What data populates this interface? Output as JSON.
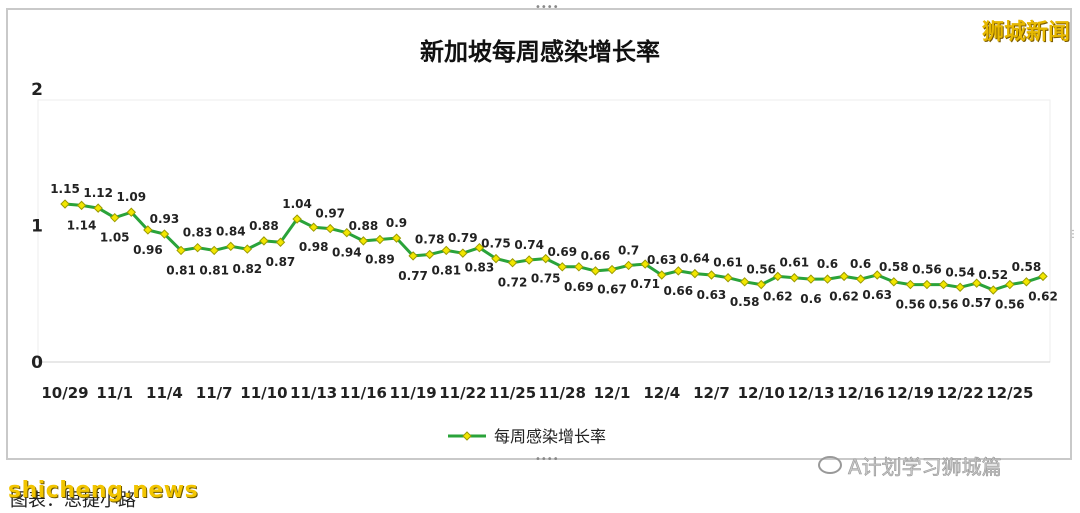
{
  "title": "新加坡每周感染增长率",
  "brand": "狮城新闻",
  "watermark_site": "shicheng.news",
  "wechat_account": "A计划学习狮城篇",
  "footer_note": "图表：思捷小路",
  "colors": {
    "line": "#2aa33a",
    "marker": "#f2e600",
    "marker_edge": "#9a9a00"
  },
  "chart_data": {
    "type": "line",
    "title": "新加坡每周感染增长率",
    "ylim": [
      0,
      2
    ],
    "yticks": [
      0,
      1,
      2
    ],
    "grid": false,
    "legend_position": "bottom",
    "x_tick_labels": [
      "10/29",
      "11/1",
      "11/4",
      "11/7",
      "11/10",
      "11/13",
      "11/16",
      "11/19",
      "11/22",
      "11/25",
      "11/28",
      "12/1",
      "12/4",
      "12/7",
      "12/10",
      "12/13",
      "12/16",
      "12/19",
      "12/22",
      "12/25"
    ],
    "x_tick_every": 3,
    "series": [
      {
        "name": "每周感染增长率",
        "values": [
          1.15,
          1.14,
          1.12,
          1.05,
          1.09,
          0.96,
          0.93,
          0.81,
          0.83,
          0.81,
          0.84,
          0.82,
          0.88,
          0.87,
          1.04,
          0.98,
          0.97,
          0.94,
          0.88,
          0.89,
          0.9,
          0.77,
          0.78,
          0.81,
          0.79,
          0.83,
          0.75,
          0.72,
          0.74,
          0.75,
          0.69,
          0.69,
          0.66,
          0.67,
          0.7,
          0.71,
          0.63,
          0.66,
          0.64,
          0.63,
          0.61,
          0.58,
          0.56,
          0.62,
          0.61,
          0.6,
          0.6,
          0.62,
          0.6,
          0.63,
          0.58,
          0.56,
          0.56,
          0.56,
          0.54,
          0.57,
          0.52,
          0.56,
          0.58,
          0.62
        ]
      }
    ]
  }
}
